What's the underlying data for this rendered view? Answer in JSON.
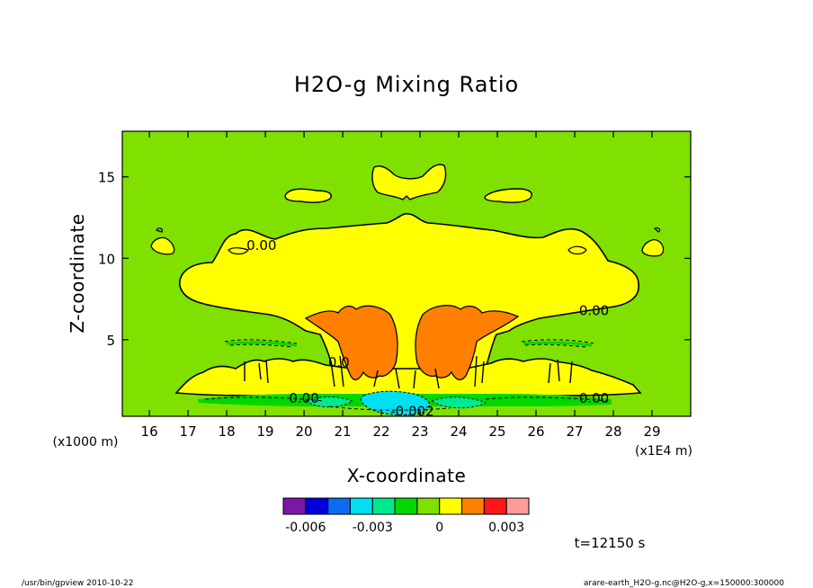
{
  "chart_data": {
    "type": "contour",
    "title": "H2O-g Mixing Ratio",
    "xlabel": "X-coordinate",
    "ylabel": "Z-coordinate",
    "x_unit_label": "(x1E4 m)",
    "y_unit_label": "(x1000 m)",
    "xlim": [
      15.3,
      30
    ],
    "ylim": [
      0.3,
      17.8
    ],
    "x_ticks": [
      16,
      17,
      18,
      19,
      20,
      21,
      22,
      23,
      24,
      25,
      26,
      27,
      28,
      29
    ],
    "y_ticks": [
      5,
      10,
      15
    ],
    "contour_labels": [
      {
        "text": "0.00",
        "x": 18.9,
        "y": 10.8
      },
      {
        "text": "0.00",
        "x": 27.5,
        "y": 6.8
      },
      {
        "text": "0.00",
        "x": 20.0,
        "y": 1.4
      },
      {
        "text": "0.00",
        "x": 27.5,
        "y": 1.4
      },
      {
        "text": "0.0",
        "x": 20.9,
        "y": 3.6
      },
      {
        "text": "-0.002",
        "x": 22.8,
        "y": 0.6
      }
    ],
    "colorbar": {
      "colors": [
        "#7a17a8",
        "#0000d8",
        "#0a6cf0",
        "#00e0f0",
        "#00e890",
        "#00d800",
        "#80e000",
        "#ffff00",
        "#ff8000",
        "#ff1818",
        "#ff9a9a"
      ],
      "tick_labels": [
        "-0.006",
        "-0.003",
        "0",
        "0.003"
      ]
    },
    "time_label": "t=12150 s"
  },
  "footer": {
    "left": "/usr/bin/gpview   2010-10-22",
    "right": "arare-earth_H2O-g.nc@H2O-g,x=150000:300000"
  }
}
